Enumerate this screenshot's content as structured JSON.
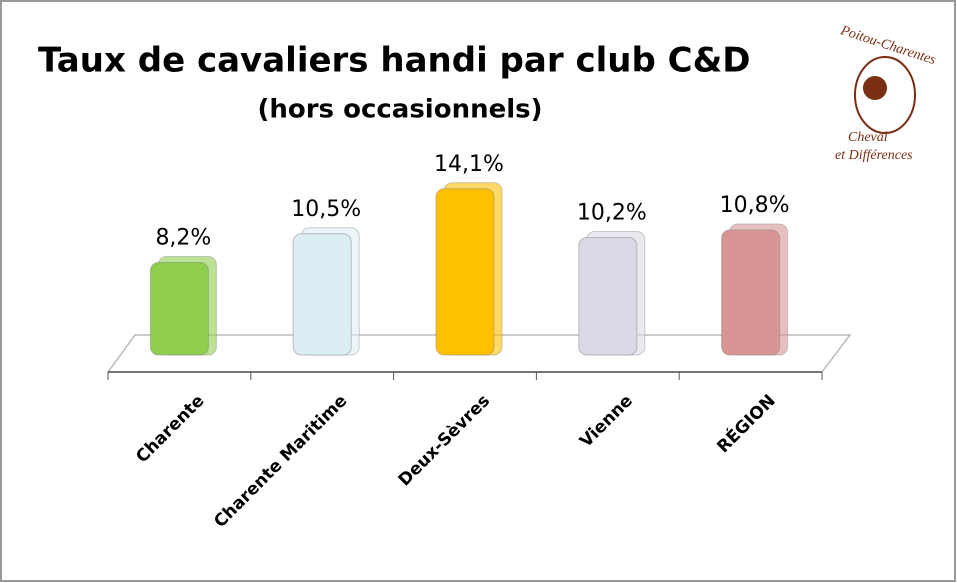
{
  "chart_data": {
    "type": "bar",
    "title": "Taux de cavaliers handi par club C&D",
    "subtitle": "(hors occasionnels)",
    "logo": {
      "line1": "Poitou-Charentes",
      "line2": "Cheval",
      "line3": "et Différences"
    },
    "categories": [
      "Charente",
      "Charente Maritime",
      "Deux-Sèvres",
      "Vienne",
      "RÉGION"
    ],
    "values": [
      8.2,
      10.5,
      14.1,
      10.2,
      10.8
    ],
    "value_labels": [
      "8,2%",
      "10,5%",
      "14,1%",
      "10,2%",
      "10,8%"
    ],
    "colors": [
      "#8fce4f",
      "#dbeef4",
      "#ffc000",
      "#ddd8e6",
      "#d99594"
    ]
  }
}
